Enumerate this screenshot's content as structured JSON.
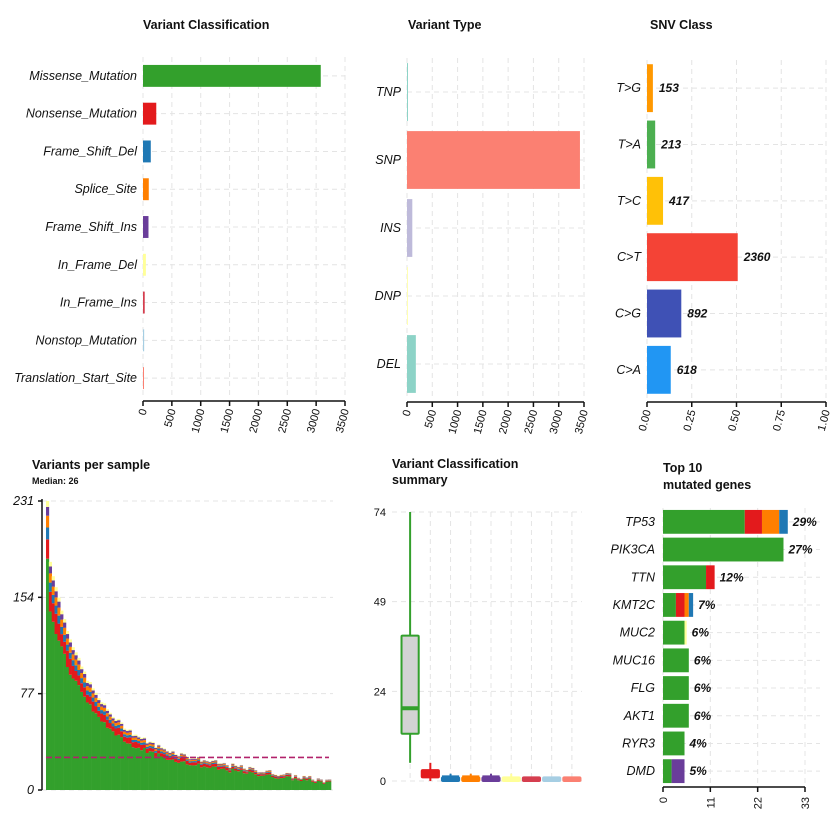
{
  "chart_data": [
    {
      "id": "vc",
      "type": "bar",
      "orientation": "horizontal",
      "title": "Variant Classification",
      "categories": [
        "Missense_Mutation",
        "Nonsense_Mutation",
        "Frame_Shift_Del",
        "Splice_Site",
        "Frame_Shift_Ins",
        "In_Frame_Del",
        "In_Frame_Ins",
        "Nonstop_Mutation",
        "Translation_Start_Site"
      ],
      "values": [
        3080,
        230,
        135,
        100,
        95,
        50,
        30,
        20,
        10
      ],
      "colors": [
        "#33a02c",
        "#e31a1c",
        "#1f78b4",
        "#ff7f00",
        "#6a3d9a",
        "#ffff99",
        "#d53e4f",
        "#a6cee3",
        "#fb8072"
      ],
      "xlim": [
        0,
        3500
      ],
      "xticks": [
        "0",
        "500",
        "1000",
        "1500",
        "2000",
        "2500",
        "3000",
        "3500"
      ]
    },
    {
      "id": "vt",
      "type": "bar",
      "orientation": "horizontal",
      "title": "Variant Type",
      "categories": [
        "TNP",
        "SNP",
        "INS",
        "DNP",
        "DEL"
      ],
      "values": [
        5,
        3420,
        105,
        10,
        175
      ],
      "colors": [
        "#8dd3c7",
        "#fb8072",
        "#bebada",
        "#ffffb3",
        "#8dd3c7"
      ],
      "xlim": [
        0,
        3500
      ],
      "xticks": [
        "0",
        "500",
        "1000",
        "1500",
        "2000",
        "2500",
        "3000",
        "3500"
      ]
    },
    {
      "id": "snv",
      "type": "bar",
      "orientation": "horizontal",
      "title": "SNV Class",
      "categories": [
        "T>G",
        "T>A",
        "T>C",
        "C>T",
        "C>G",
        "C>A"
      ],
      "counts": [
        153,
        213,
        417,
        2360,
        892,
        618
      ],
      "count_labels": [
        "153",
        "213",
        "417",
        "2360",
        "892",
        "618"
      ],
      "values": [
        0.0329,
        0.0457,
        0.0896,
        0.5068,
        0.1916,
        0.1327
      ],
      "colors": [
        "#ff9800",
        "#4caf50",
        "#ffc107",
        "#f44336",
        "#3f51b5",
        "#2196f3"
      ],
      "xlim": [
        0,
        1
      ],
      "xticks": [
        "0.00",
        "0.25",
        "0.50",
        "0.75",
        "1.00"
      ]
    },
    {
      "id": "vps",
      "type": "bar",
      "title": "Variants per sample",
      "subtitle": "Median: 26",
      "ylim": [
        0,
        231
      ],
      "yticks": [
        "0",
        "77",
        "154",
        "231"
      ],
      "median": 26,
      "n_samples": 100,
      "series_colors": [
        "#33a02c",
        "#e31a1c",
        "#1f78b4",
        "#ff7f00",
        "#6a3d9a",
        "#ffff99"
      ],
      "median_color": "#b2226b"
    },
    {
      "id": "vcs",
      "type": "box",
      "title": "Variant Classification",
      "subtitle": "summary",
      "ylim": [
        0,
        74
      ],
      "yticks": [
        "0",
        "24",
        "49",
        "74"
      ],
      "boxes": [
        {
          "color": "#33a02c",
          "min": 5,
          "q1": 13,
          "median": 20,
          "q3": 40,
          "max": 74
        },
        {
          "color": "#e31a1c",
          "min": 0,
          "q1": 1,
          "median": 2,
          "q3": 3,
          "max": 5
        },
        {
          "color": "#1f78b4",
          "min": 0,
          "q1": 0,
          "median": 1,
          "q3": 1,
          "max": 2
        },
        {
          "color": "#ff7f00",
          "min": 0,
          "q1": 0,
          "median": 1,
          "q3": 1,
          "max": 2
        },
        {
          "color": "#6a3d9a",
          "min": 0,
          "q1": 0,
          "median": 1,
          "q3": 1,
          "max": 2
        },
        {
          "color": "#ffff99",
          "min": 0,
          "q1": 0,
          "median": 0.5,
          "q3": 1,
          "max": 2
        },
        {
          "color": "#d53e4f",
          "min": 0,
          "q1": 0,
          "median": 0.5,
          "q3": 1,
          "max": 1
        },
        {
          "color": "#a6cee3",
          "min": 0,
          "q1": 0,
          "median": 0.5,
          "q3": 1,
          "max": 1
        },
        {
          "color": "#fb8072",
          "min": 0,
          "q1": 0,
          "median": 0.5,
          "q3": 1,
          "max": 1
        }
      ]
    },
    {
      "id": "top10",
      "type": "bar",
      "orientation": "horizontal",
      "stacked": true,
      "title": "Top 10",
      "subtitle": "mutated genes",
      "categories": [
        "TP53",
        "PIK3CA",
        "TTN",
        "KMT2C",
        "MUC2",
        "MUC16",
        "FLG",
        "AKT1",
        "RYR3",
        "DMD"
      ],
      "percent_labels": [
        "29%",
        "27%",
        "12%",
        "7%",
        "6%",
        "6%",
        "6%",
        "6%",
        "4%",
        "5%"
      ],
      "series": [
        {
          "name": "Missense_Mutation",
          "color": "#33a02c",
          "values": [
            19,
            28,
            10,
            3,
            5,
            6,
            6,
            6,
            5,
            2
          ]
        },
        {
          "name": "Nonsense_Mutation",
          "color": "#e31a1c",
          "values": [
            4,
            0,
            2,
            2,
            0,
            0,
            0,
            0,
            0,
            0
          ]
        },
        {
          "name": "Frame_Shift_Ins",
          "color": "#6a3d9a",
          "values": [
            0,
            0,
            0,
            0,
            0,
            0,
            0,
            0,
            0,
            3
          ]
        },
        {
          "name": "Splice_Site",
          "color": "#ff7f00",
          "values": [
            4,
            0,
            0,
            1,
            0,
            0,
            0,
            0,
            0,
            0
          ]
        },
        {
          "name": "Frame_Shift_Del",
          "color": "#1f78b4",
          "values": [
            2,
            0,
            0,
            1,
            0,
            0,
            0,
            0,
            0,
            0
          ]
        },
        {
          "name": "In_Frame_Del",
          "color": "#ffff99",
          "values": [
            0,
            0,
            0,
            0,
            0.5,
            0,
            0,
            0,
            0,
            0
          ]
        }
      ],
      "xlim": [
        0,
        33
      ],
      "xticks": [
        "0",
        "11",
        "22",
        "33"
      ]
    }
  ]
}
